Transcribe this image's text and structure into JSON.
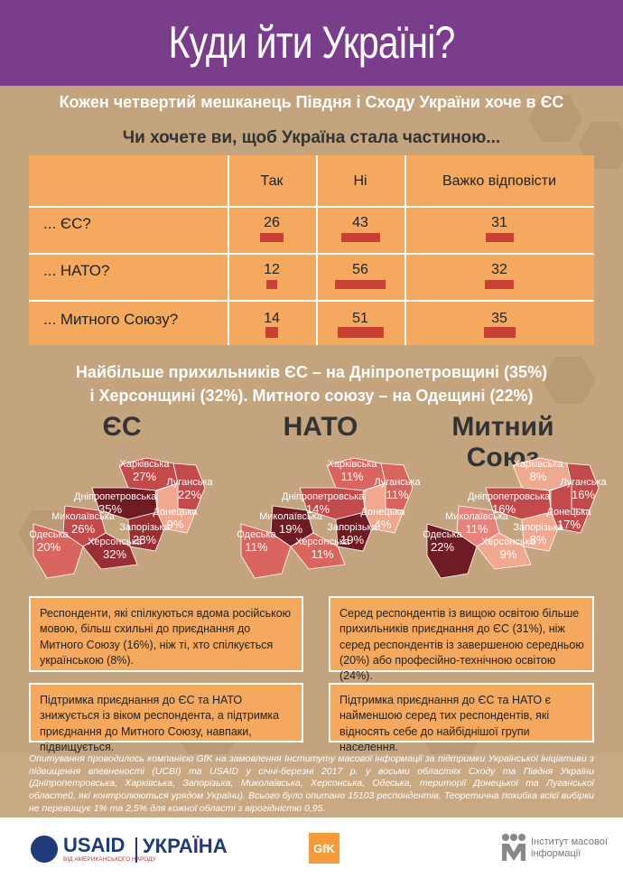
{
  "title": "Куди йти Україні?",
  "subtitle": "Кожен четвертий мешканець Півдня і Сходу України хоче в ЄС",
  "question": "Чи хочете ви, щоб Україна стала частиною...",
  "table": {
    "columns": [
      "Так",
      "Ні",
      "Важко відповісти"
    ],
    "rows": [
      {
        "label": "... ЄС?",
        "values": [
          "26",
          "43",
          "31"
        ]
      },
      {
        "label": "... НАТО?",
        "values": [
          "12",
          "56",
          "32"
        ]
      },
      {
        "label": "... Митного Союзу?",
        "values": [
          "14",
          "51",
          "35"
        ]
      }
    ]
  },
  "headline": {
    "line1": "Найбільше прихильників ЄС – на Дніпропетровщині (35%)",
    "line2": "і Херсонщині (32%). Митного союзу – на Одещині (22%)"
  },
  "maps": [
    {
      "title": "ЄС",
      "regions": {
        "kharkiv": [
          "Харківська",
          "27%"
        ],
        "luhansk": [
          "Луганська",
          "22%"
        ],
        "dnipro": [
          "Дніпропетровська",
          "35%"
        ],
        "donetsk": [
          "Донецька",
          "9%"
        ],
        "mykolaiv": [
          "Миколаївська",
          "26%"
        ],
        "zaporizhia": [
          "Запорізька",
          "28%"
        ],
        "odesa": [
          "Одеська",
          "20%"
        ],
        "kherson": [
          "Херсонська",
          "32%"
        ]
      }
    },
    {
      "title": "НАТО",
      "regions": {
        "kharkiv": [
          "Харківська",
          "11%"
        ],
        "luhansk": [
          "Луганська",
          "11%"
        ],
        "dnipro": [
          "Дніпропетровська",
          "14%"
        ],
        "donetsk": [
          "Донецька",
          "4%"
        ],
        "mykolaiv": [
          "Миколаївська",
          "19%"
        ],
        "zaporizhia": [
          "Запорізька",
          "19%"
        ],
        "odesa": [
          "Одеська",
          "11%"
        ],
        "kherson": [
          "Херсонська",
          "11%"
        ]
      }
    },
    {
      "title": "Митний Союз",
      "regions": {
        "kharkiv": [
          "Харківська",
          "8%"
        ],
        "luhansk": [
          "Луганська",
          "16%"
        ],
        "dnipro": [
          "Дніпропетровська",
          "16%"
        ],
        "donetsk": [
          "Донецька",
          "17%"
        ],
        "mykolaiv": [
          "Миколаївська",
          "11%"
        ],
        "zaporizhia": [
          "Запорізька",
          "8%"
        ],
        "odesa": [
          "Одеська",
          "22%"
        ],
        "kherson": [
          "Херсонська",
          "9%"
        ]
      }
    }
  ],
  "boxes": {
    "b1": "Респонденти, які спілкуються вдома російською мовою, більш схильні до приєднання до Митного Союзу (16%), ніж ті, хто спілкується українською (8%).",
    "b2": "Серед респондентів із вищою освітою більше прихильників приєднання до ЄС (31%), ніж серед респондентів із завершеною середньою (20%) або професійно-технічною освітою (24%).",
    "b3": "Підтримка приєднання до ЄС та НАТО знижується із віком респондента, а підтримка приєднання до Митного Союзу, навпаки, підвищується.",
    "b4": "Підтримка приєднання до ЄС та НАТО є найменшою серед тих респондентів, які відносять себе до найбіднішої групи населення."
  },
  "footer": "Опитування проводилось компанією GfK на замовлення Інституту масової інформації за підтримки Української ініціативи з підвищення впевненості (UCBI) та USAID у січні-березні 2017 р. у восьми областях Сходу та Півдня України (Дніпропетровська, Харківська, Запорізька, Миколаївська, Херсонська, Одеська, території Донецької та Луганської областей, які контролюються урядом України). Всього було опитано 15103 респондентів. Теоретична похибка всієї вибірки не перевищує 1% та 2,5% для кожної області з вірогідністю 0,95.",
  "logos": {
    "usaid": "USAID",
    "usaid_sub": "ВІД АМЕРИКАНСЬКОГО НАРОДУ",
    "ukraine": "УКРАЇНА",
    "gfk": "GfK",
    "imi_line1": "Інститут масової",
    "imi_line2": "інформації"
  },
  "colors": {
    "header": "#7a3d8c",
    "table": "#f4a95e",
    "bar": "#c94034"
  }
}
